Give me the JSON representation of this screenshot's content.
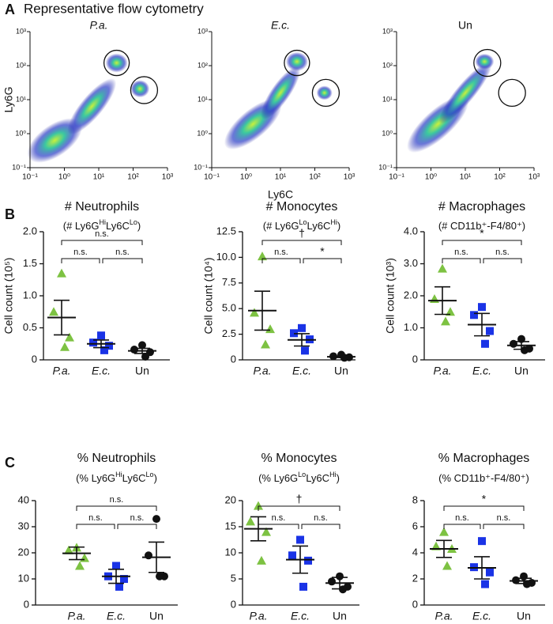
{
  "figure": {
    "title": "Representative flow cytometry",
    "panel_labels": [
      "A",
      "B",
      "C"
    ]
  },
  "chart_data": [
    {
      "type": "flow",
      "title": "P.a.",
      "ylabel": "Ly6G",
      "log_scale": true,
      "xlim": [
        0.1,
        1000
      ],
      "ylim": [
        0.1,
        1000
      ],
      "xticks": [
        {
          "value": 0.1,
          "label": "10⁻¹"
        },
        {
          "value": 1,
          "label": "10⁰"
        },
        {
          "value": 10,
          "label": "10¹"
        },
        {
          "value": 100,
          "label": "10²"
        },
        {
          "value": 1000,
          "label": "10³"
        }
      ],
      "yticks": [
        {
          "value": 0.1,
          "label": "10⁻¹"
        },
        {
          "value": 1,
          "label": "10⁰"
        },
        {
          "value": 10,
          "label": "10¹"
        },
        {
          "value": 100,
          "label": "10²"
        },
        {
          "value": 1000,
          "label": "10³"
        }
      ]
    },
    {
      "type": "flow",
      "title": "E.c.",
      "xlabel": "Ly6C",
      "log_scale": true,
      "xlim": [
        0.1,
        1000
      ],
      "ylim": [
        0.1,
        1000
      ],
      "xticks": [
        {
          "value": 0.1,
          "label": "10⁻¹"
        },
        {
          "value": 1,
          "label": "10⁰"
        },
        {
          "value": 10,
          "label": "10¹"
        },
        {
          "value": 100,
          "label": "10²"
        },
        {
          "value": 1000,
          "label": "10³"
        }
      ],
      "yticks": [
        {
          "value": 0.1,
          "label": "10⁻¹"
        },
        {
          "value": 1,
          "label": "10⁰"
        },
        {
          "value": 10,
          "label": "10¹"
        },
        {
          "value": 100,
          "label": "10²"
        },
        {
          "value": 1000,
          "label": "10³"
        }
      ]
    },
    {
      "type": "flow",
      "title": "Un",
      "log_scale": true,
      "xlim": [
        0.1,
        1000
      ],
      "ylim": [
        0.1,
        1000
      ],
      "xticks": [
        {
          "value": 0.1,
          "label": "10⁻¹"
        },
        {
          "value": 1,
          "label": "10⁰"
        },
        {
          "value": 10,
          "label": "10¹"
        },
        {
          "value": 100,
          "label": "10²"
        },
        {
          "value": 1000,
          "label": "10³"
        }
      ],
      "yticks": [
        {
          "value": 0.1,
          "label": "10⁻¹"
        },
        {
          "value": 1,
          "label": "10⁰"
        },
        {
          "value": 10,
          "label": "10¹"
        },
        {
          "value": 100,
          "label": "10²"
        },
        {
          "value": 1000,
          "label": "10³"
        }
      ]
    },
    {
      "type": "dot",
      "title": "# Neutrophils",
      "subtitle": [
        {
          "text": "(# Ly6G"
        },
        {
          "text": "Hi",
          "sup": true
        },
        {
          "text": "Ly6C"
        },
        {
          "text": "Lo",
          "sup": true
        },
        {
          "text": ")"
        }
      ],
      "ylabel": "Cell count (10⁵)",
      "ylim": [
        0,
        2.0
      ],
      "yticks": [
        0,
        0.5,
        {
          "value": 1.0,
          "label": "1.0"
        },
        1.5,
        {
          "value": 2.0,
          "label": "2.0"
        }
      ],
      "categories": [
        "P.a.",
        "E.c.",
        "Un"
      ],
      "colors": [
        "#7dc242",
        "#1a33e6",
        "#111111"
      ],
      "markers": [
        "triangle",
        "square",
        "circle"
      ],
      "points": [
        [
          1.35,
          0.75,
          0.35,
          0.2
        ],
        [
          0.38,
          0.27,
          0.22,
          0.15
        ],
        [
          0.23,
          0.16,
          0.12,
          0.05
        ]
      ],
      "means": [
        0.66,
        0.25,
        0.14
      ],
      "sems": [
        0.27,
        0.06,
        0.04
      ],
      "comparisons": [
        {
          "from": 0,
          "to": 1,
          "label": "n.s."
        },
        {
          "from": 1,
          "to": 2,
          "label": "n.s."
        },
        {
          "from": 0,
          "to": 2,
          "label": "n.s."
        }
      ]
    },
    {
      "type": "dot",
      "title": "# Monocytes",
      "subtitle": [
        {
          "text": "(# Ly6G"
        },
        {
          "text": "Lo",
          "sup": true
        },
        {
          "text": "Ly6C"
        },
        {
          "text": "Hi",
          "sup": true
        },
        {
          "text": ")"
        }
      ],
      "ylabel": "Cell count (10⁴)",
      "ylim": [
        0,
        12.5
      ],
      "yticks": [
        0,
        2.5,
        {
          "value": 5.0,
          "label": "5.0"
        },
        7.5,
        {
          "value": 10.0,
          "label": "10.0"
        },
        12.5
      ],
      "categories": [
        "P.a.",
        "E.c.",
        "Un"
      ],
      "colors": [
        "#7dc242",
        "#1a33e6",
        "#111111"
      ],
      "markers": [
        "triangle",
        "square",
        "circle"
      ],
      "points": [
        [
          10.1,
          4.6,
          3.0,
          1.5
        ],
        [
          3.1,
          2.6,
          2.0,
          0.9
        ],
        [
          0.5,
          0.35,
          0.25,
          0.2
        ]
      ],
      "means": [
        4.8,
        1.95,
        0.3
      ],
      "sems": [
        1.9,
        0.6,
        0.07
      ],
      "comparisons": [
        {
          "from": 0,
          "to": 1,
          "label": "n.s."
        },
        {
          "from": 1,
          "to": 2,
          "label": "*"
        },
        {
          "from": 0,
          "to": 2,
          "label": "†"
        }
      ]
    },
    {
      "type": "dot",
      "title": "# Macrophages",
      "subtitle": [
        {
          "text": "(# CD11b⁺-F4/80⁺)"
        }
      ],
      "ylabel": "Cell count (10³)",
      "ylim": [
        0,
        4.0
      ],
      "yticks": [
        0,
        {
          "value": 1.0,
          "label": "1.0"
        },
        {
          "value": 2.0,
          "label": "2.0"
        },
        {
          "value": 3.0,
          "label": "3.0"
        },
        {
          "value": 4.0,
          "label": "4.0"
        }
      ],
      "categories": [
        "P.a.",
        "E.c.",
        "Un"
      ],
      "colors": [
        "#7dc242",
        "#1a33e6",
        "#111111"
      ],
      "markers": [
        "triangle",
        "square",
        "circle"
      ],
      "points": [
        [
          2.85,
          1.9,
          1.5,
          1.2
        ],
        [
          1.65,
          1.4,
          0.9,
          0.5
        ],
        [
          0.65,
          0.5,
          0.35,
          0.3
        ]
      ],
      "means": [
        1.85,
        1.1,
        0.45
      ],
      "sems": [
        0.43,
        0.35,
        0.12
      ],
      "comparisons": [
        {
          "from": 0,
          "to": 1,
          "label": "n.s."
        },
        {
          "from": 1,
          "to": 2,
          "label": "n.s."
        },
        {
          "from": 0,
          "to": 2,
          "label": "*"
        }
      ]
    },
    {
      "type": "dot",
      "title": "% Neutrophils",
      "subtitle": [
        {
          "text": "(% Ly6G"
        },
        {
          "text": "Hi",
          "sup": true
        },
        {
          "text": "Ly6C"
        },
        {
          "text": "Lo",
          "sup": true
        },
        {
          "text": ")"
        }
      ],
      "ylim": [
        0,
        40
      ],
      "yticks": [
        0,
        10,
        20,
        30,
        40
      ],
      "categories": [
        "P.a.",
        "E.c.",
        "Un"
      ],
      "colors": [
        "#7dc242",
        "#1a33e6",
        "#111111"
      ],
      "markers": [
        "triangle",
        "square",
        "circle"
      ],
      "points": [
        [
          22,
          21,
          18,
          15
        ],
        [
          15,
          11,
          10,
          7
        ],
        [
          33,
          19,
          11,
          11
        ]
      ],
      "means": [
        19.8,
        11,
        18.3
      ],
      "sems": [
        2.4,
        2.7,
        5.8
      ],
      "comparisons": [
        {
          "from": 0,
          "to": 1,
          "label": "n.s."
        },
        {
          "from": 1,
          "to": 2,
          "label": "n.s."
        },
        {
          "from": 0,
          "to": 2,
          "label": "n.s."
        }
      ]
    },
    {
      "type": "dot",
      "title": "% Monocytes",
      "subtitle": [
        {
          "text": "(% Ly6G"
        },
        {
          "text": "Lo",
          "sup": true
        },
        {
          "text": "Ly6C"
        },
        {
          "text": "Hi",
          "sup": true
        },
        {
          "text": ")"
        }
      ],
      "ylim": [
        0,
        20
      ],
      "yticks": [
        0,
        5,
        10,
        15,
        20
      ],
      "categories": [
        "P.a.",
        "E.c.",
        "Un"
      ],
      "colors": [
        "#7dc242",
        "#1a33e6",
        "#111111"
      ],
      "markers": [
        "triangle",
        "square",
        "circle"
      ],
      "points": [
        [
          19,
          16,
          14,
          8.5
        ],
        [
          12.5,
          9.5,
          8.5,
          3.5
        ],
        [
          5.5,
          4.5,
          3.5,
          3
        ]
      ],
      "means": [
        14.6,
        8.7,
        4.2
      ],
      "sems": [
        2.3,
        2.6,
        1.1
      ],
      "comparisons": [
        {
          "from": 0,
          "to": 1,
          "label": "n.s."
        },
        {
          "from": 1,
          "to": 2,
          "label": "n.s."
        },
        {
          "from": 0,
          "to": 2,
          "label": "†"
        }
      ]
    },
    {
      "type": "dot",
      "title": "% Macrophages",
      "subtitle": [
        {
          "text": "(% CD11b⁺-F4/80⁺)"
        }
      ],
      "ylim": [
        0,
        8
      ],
      "yticks": [
        0,
        2,
        4,
        6,
        8
      ],
      "categories": [
        "P.a.",
        "E.c.",
        "Un"
      ],
      "colors": [
        "#7dc242",
        "#1a33e6",
        "#111111"
      ],
      "markers": [
        "triangle",
        "square",
        "circle"
      ],
      "points": [
        [
          5.6,
          4.5,
          4.3,
          3
        ],
        [
          4.9,
          2.9,
          2.5,
          1.6
        ],
        [
          2.2,
          1.9,
          1.7,
          1.6
        ]
      ],
      "means": [
        4.3,
        2.85,
        1.85
      ],
      "sems": [
        0.65,
        0.85,
        0.2
      ],
      "comparisons": [
        {
          "from": 0,
          "to": 1,
          "label": "n.s."
        },
        {
          "from": 1,
          "to": 2,
          "label": "n.s."
        },
        {
          "from": 0,
          "to": 2,
          "label": "*"
        }
      ]
    }
  ]
}
